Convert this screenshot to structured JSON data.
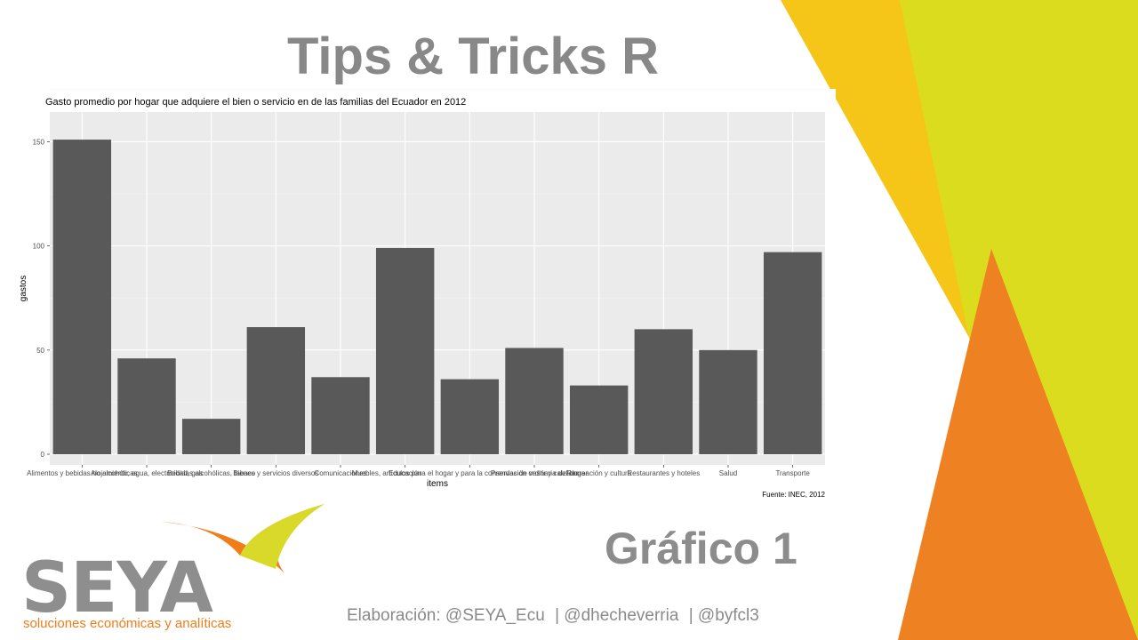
{
  "slide": {
    "title": "Tips & Tricks R",
    "figure_label": "Gráfico 1",
    "credits": [
      "Elaboración: @SEYA_Ecu",
      "| @dhecheverria",
      "| @byfcl3"
    ]
  },
  "logo": {
    "wordmark": "SEYA",
    "tagline": "soluciones económicas y analíticas"
  },
  "colors": {
    "accent_yellow": "#f5c518",
    "accent_lime": "#dcdc1e",
    "accent_orange": "#ee8122",
    "bar_fill": "#595959",
    "panel_bg": "#ebebeb",
    "title_gray": "#888888"
  },
  "chart_data": {
    "type": "bar",
    "title": "Gasto promedio por hogar que adquiere el bien o servicio en de las familias del Ecuador en 2012",
    "xlabel": "items",
    "ylabel": "gastos",
    "caption": "Fuente: INEC, 2012",
    "ylim": [
      0,
      160
    ],
    "yticks": [
      0,
      50,
      100,
      150
    ],
    "grid": true,
    "categories": [
      "Alimentos y bebidas no alcohólicas",
      "Alojamiento, agua, electricidad, gas",
      "Bebidas alcohólicas, tabaco",
      "Bienes y servicios diversos",
      "Comunicaciones",
      "Educación",
      "Muebles, artículos para el hogar y para la conservación ordinaria del hogar",
      "Prendas de vestir y calzado",
      "Recreación y cultura",
      "Restaurantes y hoteles",
      "Salud",
      "Transporte"
    ],
    "values": [
      151,
      46,
      17,
      61,
      37,
      99,
      36,
      51,
      33,
      60,
      50,
      97
    ]
  }
}
